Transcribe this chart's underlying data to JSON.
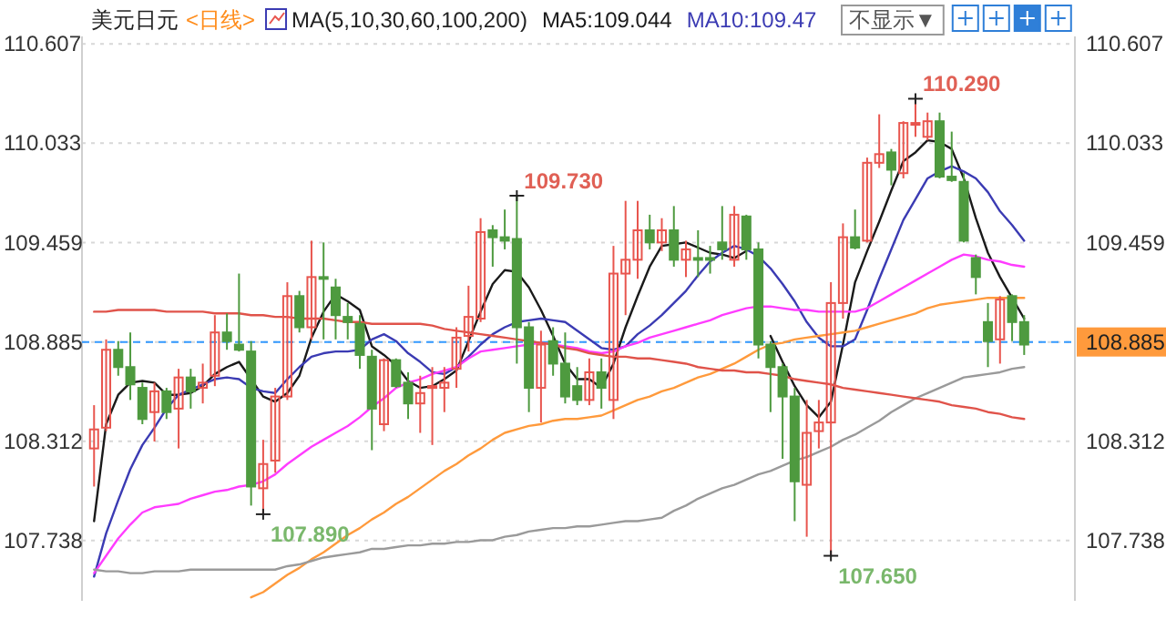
{
  "chart_data": {
    "type": "candlestick",
    "title": "美元日元",
    "subtitle": "<日线>",
    "legend_title": "MA(5,10,30,60,100,200)",
    "legend": "top",
    "categories": [
      null,
      null,
      null,
      null,
      null,
      null,
      null,
      null,
      null,
      null,
      null,
      null,
      null,
      null,
      null,
      null,
      null,
      null,
      null,
      null,
      null,
      null,
      null,
      null,
      null,
      null,
      null,
      null,
      null,
      null,
      null,
      null,
      null,
      null,
      null,
      null,
      null,
      null,
      null,
      null,
      null,
      null,
      null,
      null,
      null,
      null,
      null,
      null,
      null,
      null,
      null,
      null,
      null,
      null,
      null,
      null,
      null,
      null,
      null,
      null,
      null,
      null,
      null,
      null,
      null,
      null,
      null,
      null,
      null,
      null,
      null,
      null,
      null,
      null,
      null,
      null,
      null,
      null
    ],
    "ohlc": [
      [
        108.27,
        108.52,
        108.05,
        108.38
      ],
      [
        108.39,
        108.9,
        108.37,
        108.84
      ],
      [
        108.84,
        108.89,
        108.69,
        108.74
      ],
      [
        108.74,
        108.94,
        108.55,
        108.64
      ],
      [
        108.62,
        108.65,
        108.41,
        108.44
      ],
      [
        108.48,
        108.65,
        108.31,
        108.6
      ],
      [
        108.6,
        108.62,
        108.44,
        108.48
      ],
      [
        108.5,
        108.73,
        108.27,
        108.68
      ],
      [
        108.68,
        108.73,
        108.5,
        108.6
      ],
      [
        108.62,
        108.76,
        108.53,
        108.65
      ],
      [
        108.69,
        109.04,
        108.63,
        108.94
      ],
      [
        108.94,
        109.05,
        108.84,
        108.89
      ],
      [
        108.87,
        109.28,
        108.83,
        108.84
      ],
      [
        108.83,
        108.89,
        107.94,
        108.05
      ],
      [
        108.04,
        108.32,
        107.89,
        108.18
      ],
      [
        108.2,
        108.62,
        108.13,
        108.57
      ],
      [
        108.57,
        109.23,
        108.55,
        109.15
      ],
      [
        109.15,
        109.18,
        108.94,
        108.97
      ],
      [
        108.97,
        109.47,
        108.9,
        109.26
      ],
      [
        109.26,
        109.46,
        108.9,
        109.25
      ],
      [
        109.2,
        109.25,
        108.9,
        109.04
      ],
      [
        109.03,
        109.11,
        108.9,
        109.0
      ],
      [
        108.99,
        109.04,
        108.73,
        108.81
      ],
      [
        108.8,
        108.84,
        108.26,
        108.5
      ],
      [
        108.41,
        108.79,
        108.37,
        108.78
      ],
      [
        108.78,
        108.79,
        108.62,
        108.63
      ],
      [
        108.65,
        108.71,
        108.44,
        108.53
      ],
      [
        108.53,
        108.69,
        108.36,
        108.59
      ],
      [
        108.62,
        108.74,
        108.29,
        108.63
      ],
      [
        108.62,
        108.74,
        108.48,
        108.65
      ],
      [
        108.73,
        108.97,
        108.62,
        108.91
      ],
      [
        108.92,
        109.21,
        108.83,
        109.03
      ],
      [
        109.02,
        109.6,
        109.0,
        109.52
      ],
      [
        109.53,
        109.56,
        109.32,
        109.49
      ],
      [
        109.49,
        109.65,
        109.42,
        109.47
      ],
      [
        109.48,
        109.73,
        108.76,
        108.97
      ],
      [
        108.97,
        109.0,
        108.48,
        108.62
      ],
      [
        108.62,
        108.95,
        108.42,
        108.87
      ],
      [
        108.89,
        108.97,
        108.69,
        108.76
      ],
      [
        108.76,
        108.94,
        108.53,
        108.57
      ],
      [
        108.63,
        108.74,
        108.52,
        108.55
      ],
      [
        108.55,
        108.79,
        108.52,
        108.71
      ],
      [
        108.71,
        108.79,
        108.5,
        108.62
      ],
      [
        108.55,
        109.44,
        108.44,
        109.28
      ],
      [
        109.28,
        109.7,
        109.04,
        109.36
      ],
      [
        109.36,
        109.7,
        109.25,
        109.53
      ],
      [
        109.53,
        109.62,
        109.42,
        109.46
      ],
      [
        109.46,
        109.6,
        109.41,
        109.53
      ],
      [
        109.53,
        109.67,
        109.32,
        109.36
      ],
      [
        109.36,
        109.47,
        109.26,
        109.42
      ],
      [
        109.37,
        109.53,
        109.26,
        109.36
      ],
      [
        109.37,
        109.44,
        109.28,
        109.36
      ],
      [
        109.46,
        109.67,
        109.36,
        109.42
      ],
      [
        109.36,
        109.67,
        109.32,
        109.62
      ],
      [
        109.61,
        109.62,
        109.36,
        109.42
      ],
      [
        109.42,
        109.46,
        108.79,
        108.87
      ],
      [
        108.87,
        108.89,
        108.48,
        108.74
      ],
      [
        108.74,
        108.76,
        108.21,
        108.57
      ],
      [
        108.57,
        108.62,
        107.85,
        108.08
      ],
      [
        108.06,
        108.55,
        107.76,
        108.36
      ],
      [
        108.37,
        108.55,
        108.27,
        108.42
      ],
      [
        108.42,
        109.23,
        107.65,
        109.11
      ],
      [
        109.11,
        109.57,
        109.02,
        109.49
      ],
      [
        109.49,
        109.65,
        109.42,
        109.43
      ],
      [
        109.47,
        109.95,
        109.46,
        109.92
      ],
      [
        109.92,
        110.2,
        109.89,
        109.97
      ],
      [
        109.98,
        110.0,
        109.79,
        109.88
      ],
      [
        109.86,
        110.16,
        109.83,
        110.15
      ],
      [
        110.14,
        110.29,
        110.07,
        110.15
      ],
      [
        110.07,
        110.21,
        110.05,
        110.16
      ],
      [
        110.16,
        110.21,
        109.83,
        109.84
      ],
      [
        109.84,
        110.1,
        109.81,
        109.82
      ],
      [
        109.81,
        109.86,
        109.46,
        109.47
      ],
      [
        109.37,
        109.39,
        109.16,
        109.26
      ],
      [
        109.0,
        109.11,
        108.74,
        108.89
      ],
      [
        108.9,
        109.15,
        108.76,
        109.13
      ],
      [
        109.15,
        109.16,
        108.89,
        109.0
      ],
      [
        109.0,
        109.04,
        108.81,
        108.87
      ]
    ],
    "colors": [
      "#e8554e",
      "#e8554e",
      "#4e9a3f",
      "#4e9a3f",
      "#4e9a3f",
      "#e8554e",
      "#4e9a3f",
      "#e8554e",
      "#4e9a3f",
      "#e8554e",
      "#e8554e",
      "#4e9a3f",
      "#4e9a3f",
      "#4e9a3f",
      "#e8554e",
      "#e8554e",
      "#e8554e",
      "#4e9a3f",
      "#e8554e",
      "#4e9a3f",
      "#4e9a3f",
      "#4e9a3f",
      "#4e9a3f",
      "#4e9a3f",
      "#e8554e",
      "#4e9a3f",
      "#4e9a3f",
      "#e8554e",
      "#e8554e",
      "#e8554e",
      "#e8554e",
      "#e8554e",
      "#e8554e",
      "#4e9a3f",
      "#4e9a3f",
      "#4e9a3f",
      "#4e9a3f",
      "#e8554e",
      "#4e9a3f",
      "#4e9a3f",
      "#4e9a3f",
      "#e8554e",
      "#4e9a3f",
      "#e8554e",
      "#e8554e",
      "#e8554e",
      "#4e9a3f",
      "#e8554e",
      "#4e9a3f",
      "#e8554e",
      "#4e9a3f",
      "#4e9a3f",
      "#4e9a3f",
      "#e8554e",
      "#4e9a3f",
      "#4e9a3f",
      "#4e9a3f",
      "#4e9a3f",
      "#4e9a3f",
      "#e8554e",
      "#e8554e",
      "#e8554e",
      "#e8554e",
      "#4e9a3f",
      "#e8554e",
      "#e8554e",
      "#4e9a3f",
      "#e8554e",
      "#e8554e",
      "#e8554e",
      "#4e9a3f",
      "#4e9a3f",
      "#4e9a3f",
      "#4e9a3f",
      "#4e9a3f",
      "#e8554e",
      "#4e9a3f",
      "#4e9a3f"
    ],
    "series": [
      {
        "type": "line",
        "name": "MA5:109.044",
        "color": "#1a1a1a",
        "values": [
          107.85,
          108.41,
          108.58,
          108.65,
          108.66,
          108.65,
          108.58,
          108.58,
          108.59,
          108.63,
          108.7,
          108.74,
          108.77,
          108.67,
          108.57,
          108.54,
          108.59,
          108.69,
          108.91,
          109.06,
          109.16,
          109.12,
          109.07,
          108.86,
          108.81,
          108.75,
          108.66,
          108.62,
          108.63,
          108.67,
          108.72,
          108.89,
          109.06,
          109.22,
          109.3,
          109.29,
          109.2,
          109.07,
          108.92,
          108.76,
          108.67,
          108.67,
          108.62,
          108.76,
          108.97,
          109.15,
          109.32,
          109.44,
          109.45,
          109.46,
          109.43,
          109.4,
          109.39,
          109.37,
          109.41,
          null,
          108.92,
          108.77,
          108.63,
          108.52,
          108.45,
          108.54,
          108.87,
          109.23,
          109.41,
          109.58,
          109.76,
          109.93,
          109.98,
          110.05,
          110.04,
          110.0,
          109.83,
          109.6,
          109.4,
          109.26,
          109.14,
          109.02
        ]
      },
      {
        "type": "line",
        "name": "MA10:109.47",
        "color": "#3b3bb3",
        "values": [
          107.53,
          107.78,
          107.97,
          108.15,
          108.29,
          108.39,
          108.5,
          108.58,
          108.61,
          108.64,
          108.67,
          108.68,
          108.67,
          108.62,
          108.6,
          108.59,
          108.67,
          108.74,
          108.8,
          108.82,
          108.83,
          108.83,
          108.84,
          108.9,
          108.93,
          108.89,
          108.82,
          108.77,
          108.71,
          108.7,
          108.74,
          108.8,
          108.87,
          108.93,
          108.97,
          109.0,
          109.01,
          109.02,
          109.01,
          109.0,
          108.95,
          108.9,
          108.85,
          108.84,
          108.86,
          108.93,
          108.98,
          109.04,
          109.11,
          109.18,
          109.27,
          109.35,
          109.4,
          109.44,
          109.42,
          109.38,
          109.31,
          109.22,
          109.12,
          109.0,
          108.91,
          108.86,
          108.86,
          108.9,
          109.07,
          109.25,
          109.42,
          109.59,
          109.71,
          109.83,
          109.87,
          109.9,
          109.87,
          109.83,
          109.75,
          109.64,
          109.56,
          109.47
        ]
      },
      {
        "type": "line",
        "color": "#ff3cff",
        "values": [
          107.55,
          107.65,
          107.75,
          107.83,
          107.9,
          107.93,
          107.94,
          107.95,
          107.98,
          108.0,
          108.02,
          108.03,
          108.05,
          108.06,
          108.08,
          108.12,
          108.18,
          108.23,
          108.28,
          108.32,
          108.36,
          108.4,
          108.45,
          108.51,
          108.56,
          108.62,
          108.65,
          108.67,
          108.7,
          108.72,
          108.74,
          108.79,
          108.83,
          108.84,
          108.85,
          108.86,
          108.87,
          108.88,
          108.87,
          108.86,
          108.85,
          108.83,
          108.82,
          108.83,
          108.86,
          108.88,
          108.91,
          108.93,
          108.95,
          108.97,
          108.99,
          109.01,
          109.04,
          109.06,
          109.08,
          109.09,
          109.09,
          109.08,
          109.07,
          109.07,
          109.06,
          109.06,
          109.06,
          109.06,
          109.08,
          109.12,
          109.16,
          109.2,
          109.24,
          109.28,
          109.32,
          109.36,
          109.39,
          109.38,
          109.36,
          109.35,
          109.33,
          109.32
        ]
      },
      {
        "type": "line",
        "color": "#ff9a3c",
        "values": [
          null,
          null,
          null,
          null,
          null,
          null,
          null,
          null,
          null,
          null,
          null,
          null,
          null,
          107.41,
          107.44,
          107.49,
          107.54,
          107.58,
          107.63,
          107.67,
          107.72,
          107.77,
          107.81,
          107.86,
          107.9,
          107.95,
          107.99,
          108.04,
          108.09,
          108.14,
          108.18,
          108.23,
          108.27,
          108.32,
          108.36,
          108.38,
          108.4,
          108.41,
          108.43,
          108.44,
          108.44,
          108.45,
          108.46,
          108.49,
          108.52,
          108.55,
          108.57,
          108.6,
          108.62,
          108.65,
          108.68,
          108.7,
          108.73,
          108.76,
          108.8,
          108.84,
          108.87,
          108.88,
          108.9,
          108.91,
          108.92,
          108.93,
          108.94,
          108.95,
          108.97,
          108.99,
          109.01,
          109.03,
          109.05,
          109.08,
          109.1,
          109.11,
          109.12,
          109.13,
          109.14,
          109.14,
          109.14,
          109.14
        ]
      },
      {
        "type": "line",
        "color": "#9a9a9a",
        "values": [
          107.57,
          107.56,
          107.56,
          107.55,
          107.55,
          107.56,
          107.56,
          107.56,
          107.57,
          107.57,
          107.57,
          107.57,
          107.57,
          107.57,
          107.57,
          107.57,
          107.59,
          107.6,
          107.62,
          107.64,
          107.65,
          107.66,
          107.67,
          107.69,
          107.69,
          107.7,
          107.71,
          107.71,
          107.72,
          107.72,
          107.73,
          107.73,
          107.74,
          107.74,
          107.76,
          107.77,
          107.79,
          107.8,
          107.81,
          107.81,
          107.82,
          107.82,
          107.83,
          107.84,
          107.85,
          107.85,
          107.86,
          107.87,
          107.91,
          107.94,
          107.98,
          108.01,
          108.04,
          108.06,
          108.09,
          108.12,
          108.14,
          108.17,
          108.2,
          108.22,
          108.25,
          108.28,
          108.32,
          108.35,
          108.39,
          108.43,
          108.48,
          108.52,
          108.56,
          108.59,
          108.62,
          108.65,
          108.68,
          108.69,
          108.7,
          108.71,
          108.73,
          108.74
        ]
      },
      {
        "type": "line",
        "color": "#e0534a",
        "values": [
          109.06,
          109.06,
          109.07,
          109.07,
          109.07,
          109.07,
          109.06,
          109.06,
          109.06,
          109.06,
          109.05,
          109.05,
          109.05,
          109.04,
          109.04,
          109.03,
          109.03,
          109.02,
          109.02,
          109.02,
          109.01,
          109.0,
          109.0,
          108.99,
          108.99,
          108.99,
          108.99,
          108.99,
          108.98,
          108.96,
          108.95,
          108.94,
          108.93,
          108.92,
          108.91,
          108.9,
          108.89,
          108.88,
          108.87,
          108.85,
          108.84,
          108.82,
          108.81,
          108.8,
          108.8,
          108.79,
          108.79,
          108.78,
          108.77,
          108.76,
          108.74,
          108.73,
          108.72,
          108.72,
          108.71,
          108.71,
          108.7,
          108.69,
          108.67,
          108.66,
          108.65,
          108.64,
          108.62,
          108.61,
          108.6,
          108.59,
          108.58,
          108.57,
          108.56,
          108.55,
          108.54,
          108.52,
          108.51,
          108.5,
          108.48,
          108.47,
          108.45,
          108.44
        ]
      }
    ],
    "ylim": [
      107.39,
      110.65
    ],
    "yticks": [
      110.607,
      110.033,
      109.459,
      108.885,
      108.312,
      107.738
    ],
    "y2lim": [
      107.39,
      110.65
    ],
    "y2ticks": [
      110.607,
      110.033,
      109.459,
      108.885,
      108.312,
      107.738
    ],
    "grid": "y",
    "ref_lines": [
      {
        "axis": "y",
        "value": 108.885,
        "label": "108.885",
        "color": "#3399ff",
        "line_style": "dashed"
      }
    ],
    "annotations": [
      "不显示▼",
      "110.290",
      "109.730",
      "107.890",
      "107.650"
    ]
  }
}
